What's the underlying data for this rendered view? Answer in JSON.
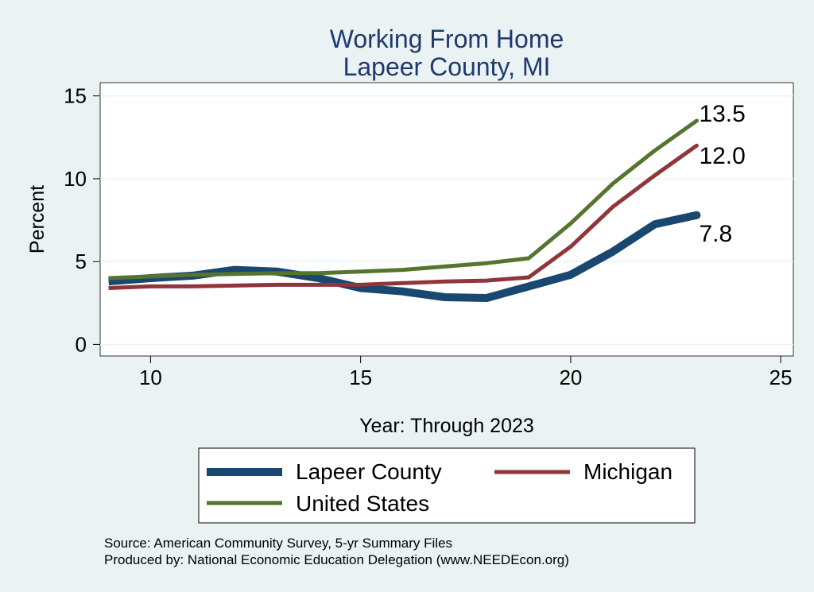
{
  "chart_data": {
    "type": "line",
    "title": [
      "Working From Home",
      "Lapeer County, MI"
    ],
    "xlabel": "Year: Through 2023",
    "ylabel": "Percent",
    "xlim": [
      8.8,
      25.3
    ],
    "ylim": [
      -0.7,
      15.8
    ],
    "xticks": [
      "10",
      "15",
      "20",
      "25"
    ],
    "yticks": [
      "0",
      "5",
      "10",
      "15"
    ],
    "grid": "horizontal",
    "x": [
      9,
      10,
      11,
      12,
      13,
      14,
      15,
      16,
      17,
      18,
      19,
      20,
      21,
      22,
      23
    ],
    "series": [
      {
        "name": "Lapeer County",
        "color": "#1a476f",
        "values": [
          3.8,
          4.0,
          4.15,
          4.5,
          4.4,
          4.0,
          3.4,
          3.2,
          2.85,
          2.8,
          3.5,
          4.2,
          5.6,
          7.25,
          7.8
        ],
        "end_label": "7.8"
      },
      {
        "name": "Michigan",
        "color": "#90353b",
        "values": [
          3.4,
          3.5,
          3.5,
          3.55,
          3.6,
          3.6,
          3.6,
          3.7,
          3.8,
          3.85,
          4.05,
          5.9,
          8.3,
          10.2,
          12.0
        ],
        "end_label": "12.0"
      },
      {
        "name": "United States",
        "color": "#55752f",
        "values": [
          4.0,
          4.1,
          4.2,
          4.25,
          4.3,
          4.3,
          4.4,
          4.5,
          4.7,
          4.9,
          5.2,
          7.3,
          9.7,
          11.7,
          13.5
        ],
        "end_label": "13.5"
      }
    ],
    "legend": {
      "position": "bottom",
      "items": [
        "Lapeer County",
        "Michigan",
        "United States"
      ]
    }
  },
  "notes": [
    "Source: American Community Survey, 5-yr Summary Files",
    "Produced by: National Economic Education Delegation (www.NEEDEcon.org)"
  ]
}
